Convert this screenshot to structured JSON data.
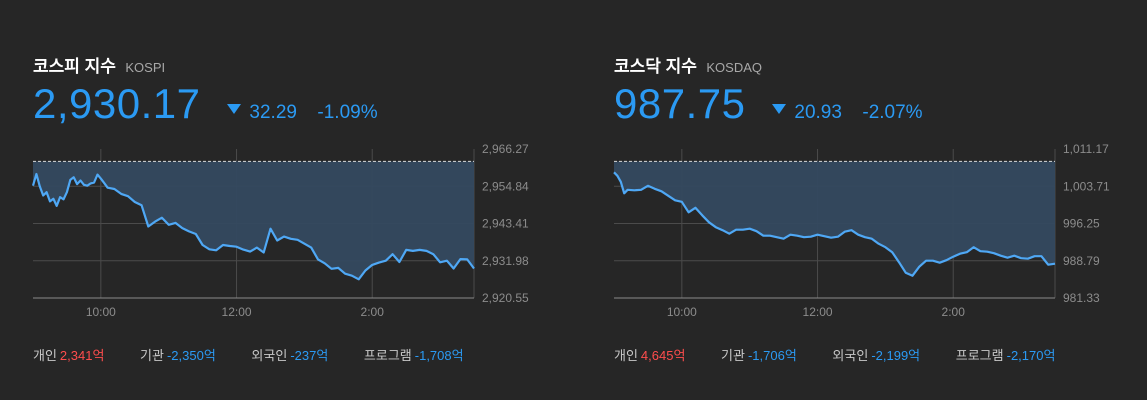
{
  "colors": {
    "accent": "#2b9af3",
    "positive": "#ff4d4d",
    "background": "#262626",
    "area": "#34495f"
  },
  "kospi": {
    "name": "코스피 지수",
    "code": "KOSPI",
    "price": "2,930.17",
    "change_icon": "down-triangle-icon",
    "change": "32.29",
    "change_pct": "-1.09%",
    "flows": [
      {
        "label": "개인",
        "value": "2,341억",
        "dir": "up"
      },
      {
        "label": "기관",
        "value": "-2,350억",
        "dir": "down"
      },
      {
        "label": "외국인",
        "value": "-237억",
        "dir": "down"
      },
      {
        "label": "프로그램",
        "value": "-1,708억",
        "dir": "down"
      }
    ]
  },
  "kosdaq": {
    "name": "코스닥 지수",
    "code": "KOSDAQ",
    "price": "987.75",
    "change_icon": "down-triangle-icon",
    "change": "20.93",
    "change_pct": "-2.07%",
    "flows": [
      {
        "label": "개인",
        "value": "4,645억",
        "dir": "up"
      },
      {
        "label": "기관",
        "value": "-1,706억",
        "dir": "down"
      },
      {
        "label": "외국인",
        "value": "-2,199억",
        "dir": "down"
      },
      {
        "label": "프로그램",
        "value": "-2,170억",
        "dir": "down"
      }
    ]
  },
  "chart_data": [
    {
      "type": "area",
      "title": "KOSPI",
      "ylim": [
        2920.55,
        2966.27
      ],
      "xlim": [
        9.0,
        15.5
      ],
      "yticks": [
        "2,966.27",
        "2,954.84",
        "2,943.41",
        "2,931.98",
        "2,920.55"
      ],
      "ytick_values": [
        2966.27,
        2954.84,
        2943.41,
        2931.98,
        2920.55
      ],
      "xticks": [
        "10:00",
        "12:00",
        "2:00"
      ],
      "xtick_values": [
        10.0,
        12.0,
        14.0
      ],
      "reference_line": 2962.46,
      "x": [
        9.0,
        9.05,
        9.1,
        9.15,
        9.2,
        9.25,
        9.3,
        9.35,
        9.4,
        9.45,
        9.5,
        9.55,
        9.6,
        9.65,
        9.7,
        9.75,
        9.8,
        9.85,
        9.9,
        9.95,
        10.0,
        10.05,
        10.1,
        10.2,
        10.3,
        10.4,
        10.5,
        10.6,
        10.7,
        10.8,
        10.9,
        11.0,
        11.1,
        11.2,
        11.3,
        11.4,
        11.5,
        11.6,
        11.7,
        11.8,
        11.9,
        12.0,
        12.1,
        12.2,
        12.3,
        12.4,
        12.5,
        12.6,
        12.7,
        12.8,
        12.9,
        13.0,
        13.1,
        13.2,
        13.3,
        13.4,
        13.5,
        13.6,
        13.7,
        13.8,
        13.9,
        14.0,
        14.1,
        14.2,
        14.3,
        14.4,
        14.5,
        14.6,
        14.7,
        14.8,
        14.9,
        15.0,
        15.1,
        15.2,
        15.3,
        15.4,
        15.5
      ],
      "y": [
        2955.0,
        2958.6,
        2954.8,
        2952.0,
        2953.0,
        2950.2,
        2951.0,
        2948.8,
        2951.5,
        2950.8,
        2953.0,
        2956.8,
        2957.6,
        2955.5,
        2956.6,
        2955.3,
        2955.0,
        2955.7,
        2956.0,
        2958.4,
        2957.2,
        2955.8,
        2954.4,
        2954.0,
        2952.5,
        2951.8,
        2950.0,
        2949.0,
        2942.5,
        2944.0,
        2945.2,
        2943.0,
        2943.6,
        2942.0,
        2941.0,
        2940.2,
        2936.8,
        2935.5,
        2935.2,
        2936.8,
        2936.5,
        2936.3,
        2935.4,
        2934.8,
        2936.0,
        2934.5,
        2941.8,
        2938.2,
        2939.4,
        2938.7,
        2938.4,
        2937.2,
        2936.0,
        2932.4,
        2931.2,
        2929.5,
        2929.8,
        2928.0,
        2927.4,
        2926.3,
        2929.0,
        2930.7,
        2931.4,
        2932.0,
        2934.0,
        2931.6,
        2935.3,
        2935.0,
        2935.3,
        2935.0,
        2934.0,
        2931.5,
        2932.0,
        2929.6,
        2932.5,
        2932.4,
        2929.6
      ]
    },
    {
      "type": "area",
      "title": "KOSDAQ",
      "ylim": [
        981.33,
        1011.17
      ],
      "xlim": [
        9.0,
        15.5
      ],
      "yticks": [
        "1,011.17",
        "1,003.71",
        "996.25",
        "988.79",
        "981.33"
      ],
      "ytick_values": [
        1011.17,
        1003.71,
        996.25,
        988.79,
        981.33
      ],
      "xticks": [
        "10:00",
        "12:00",
        "2:00"
      ],
      "xtick_values": [
        10.0,
        12.0,
        14.0
      ],
      "reference_line": 1008.68,
      "x": [
        9.0,
        9.05,
        9.1,
        9.15,
        9.2,
        9.3,
        9.4,
        9.5,
        9.6,
        9.7,
        9.8,
        9.9,
        10.0,
        10.1,
        10.2,
        10.3,
        10.4,
        10.5,
        10.6,
        10.7,
        10.8,
        10.9,
        11.0,
        11.1,
        11.2,
        11.3,
        11.4,
        11.5,
        11.6,
        11.7,
        11.8,
        11.9,
        12.0,
        12.1,
        12.2,
        12.3,
        12.4,
        12.5,
        12.6,
        12.7,
        12.8,
        12.9,
        13.0,
        13.1,
        13.2,
        13.3,
        13.4,
        13.5,
        13.6,
        13.7,
        13.8,
        13.9,
        14.0,
        14.1,
        14.2,
        14.3,
        14.4,
        14.5,
        14.6,
        14.7,
        14.8,
        14.9,
        15.0,
        15.1,
        15.2,
        15.3,
        15.4,
        15.5
      ],
      "y": [
        1006.5,
        1005.8,
        1004.6,
        1002.3,
        1003.0,
        1002.9,
        1003.0,
        1003.8,
        1003.2,
        1002.7,
        1001.8,
        1000.9,
        1000.6,
        998.5,
        999.4,
        997.9,
        996.5,
        995.5,
        994.9,
        994.2,
        995.0,
        995.0,
        995.2,
        994.7,
        993.8,
        993.8,
        993.5,
        993.2,
        994.0,
        993.8,
        993.5,
        993.6,
        994.0,
        993.7,
        993.4,
        993.6,
        994.6,
        994.9,
        994.0,
        993.5,
        993.2,
        992.2,
        991.5,
        990.5,
        988.5,
        986.4,
        985.8,
        987.6,
        988.8,
        988.8,
        988.4,
        988.9,
        989.6,
        990.2,
        990.5,
        991.5,
        990.7,
        990.6,
        990.3,
        989.8,
        989.4,
        989.8,
        989.3,
        989.2,
        989.7,
        989.7,
        988.0,
        988.2
      ]
    }
  ]
}
